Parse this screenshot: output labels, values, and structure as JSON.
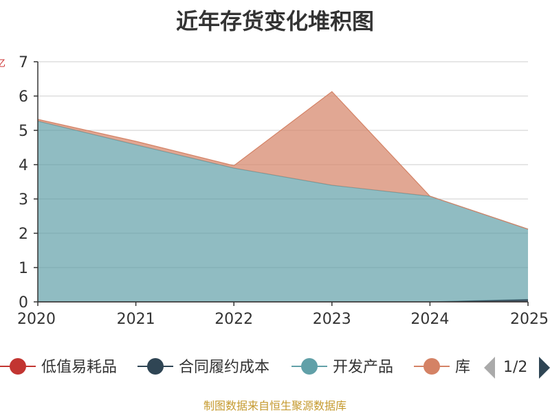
{
  "chart_data": {
    "type": "area",
    "title": "近年存货变化堆积图",
    "ylabel": "亿",
    "xlabel": "",
    "categories": [
      "2020",
      "2021",
      "2022",
      "2023",
      "2024",
      "2025"
    ],
    "ylim": [
      0,
      7
    ],
    "yticks": [
      0,
      1,
      2,
      3,
      4,
      5,
      6,
      7
    ],
    "stacked": true,
    "grid": true,
    "legend_position": "bottom",
    "series": [
      {
        "name": "低值易耗品",
        "color": "#c23531",
        "values": [
          0,
          0,
          0,
          0,
          0,
          0
        ]
      },
      {
        "name": "合同履约成本",
        "color": "#2f4554",
        "values": [
          0,
          0,
          0,
          0,
          0,
          0.07
        ]
      },
      {
        "name": "开发产品",
        "color": "#61a0a8",
        "values": [
          5.27,
          4.58,
          3.9,
          3.4,
          3.08,
          2.05
        ]
      },
      {
        "name": "库存商品",
        "color": "#d48265",
        "values": [
          0.05,
          0.1,
          0.07,
          2.73,
          0.0,
          0.0
        ]
      }
    ],
    "legend_visible_label_last": "库"
  },
  "legend": {
    "page": "1/2"
  },
  "source_note": "制图数据来自恒生聚源数据库"
}
